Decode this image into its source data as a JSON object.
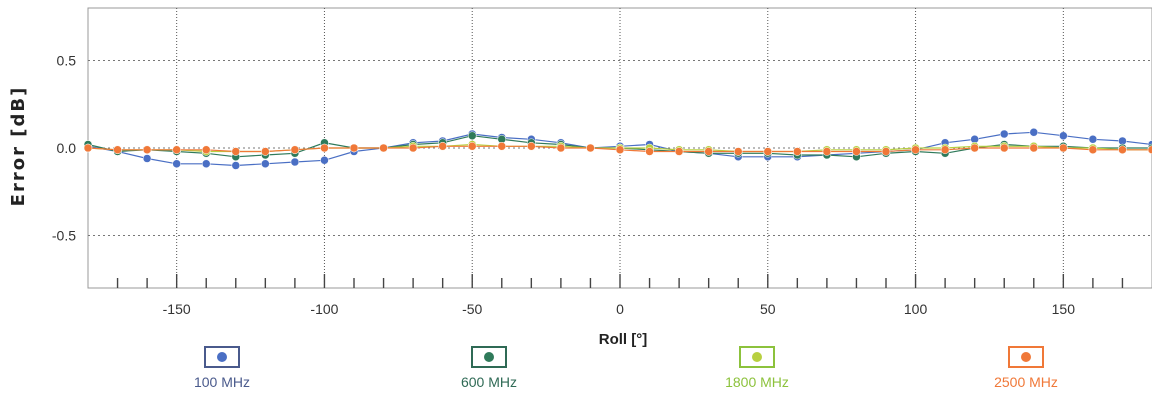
{
  "chart_data": {
    "type": "line",
    "xlabel": "Roll [°]",
    "ylabel": "Error [dB]",
    "xlim": [
      -180,
      180
    ],
    "ylim": [
      -0.8,
      0.8
    ],
    "x_ticks": [
      -150,
      -100,
      -50,
      0,
      50,
      100,
      150
    ],
    "x_tick_labels": [
      "-150",
      "-100",
      "-50",
      "0",
      "50",
      "100",
      "150"
    ],
    "y_ticks": [
      0.5,
      0.0,
      -0.5
    ],
    "y_tick_labels": [
      "0.5",
      "0.0",
      "-0.5"
    ],
    "grid": true,
    "legend_position": "bottom",
    "x": [
      -180,
      -170,
      -160,
      -150,
      -140,
      -130,
      -120,
      -110,
      -100,
      -90,
      -80,
      -70,
      -60,
      -50,
      -40,
      -30,
      -20,
      -10,
      0,
      10,
      20,
      30,
      40,
      50,
      60,
      70,
      80,
      90,
      100,
      110,
      120,
      130,
      140,
      150,
      160,
      170,
      180
    ],
    "series": [
      {
        "name": "100 MHz",
        "color": "#4a6fc4",
        "legend_color": "#4a5a8c",
        "values": [
          0.01,
          -0.02,
          -0.06,
          -0.09,
          -0.09,
          -0.1,
          -0.09,
          -0.08,
          -0.07,
          -0.02,
          0.0,
          0.03,
          0.04,
          0.08,
          0.06,
          0.05,
          0.03,
          0.0,
          0.01,
          0.02,
          -0.02,
          -0.03,
          -0.05,
          -0.05,
          -0.05,
          -0.04,
          -0.03,
          -0.02,
          -0.01,
          0.03,
          0.05,
          0.08,
          0.09,
          0.07,
          0.05,
          0.04,
          0.02
        ]
      },
      {
        "name": "600 MHz",
        "color": "#2f7a5a",
        "legend_color": "#2f6a55",
        "values": [
          0.02,
          -0.02,
          -0.01,
          -0.02,
          -0.03,
          -0.05,
          -0.04,
          -0.03,
          0.03,
          0.0,
          0.0,
          0.02,
          0.03,
          0.07,
          0.05,
          0.03,
          0.02,
          0.0,
          0.0,
          -0.01,
          -0.02,
          -0.03,
          -0.03,
          -0.03,
          -0.04,
          -0.04,
          -0.05,
          -0.03,
          -0.02,
          -0.03,
          0.0,
          0.02,
          0.01,
          0.01,
          0.0,
          0.0,
          0.0
        ]
      },
      {
        "name": "1800 MHz",
        "color": "#b8d040",
        "legend_color": "#8cc23c",
        "values": [
          0.0,
          -0.01,
          -0.01,
          -0.01,
          -0.02,
          -0.02,
          -0.02,
          -0.01,
          0.0,
          0.0,
          0.0,
          0.01,
          0.01,
          0.02,
          0.01,
          0.01,
          0.01,
          0.0,
          0.0,
          0.0,
          -0.01,
          -0.01,
          -0.02,
          -0.02,
          -0.02,
          -0.01,
          -0.01,
          -0.01,
          0.0,
          0.0,
          0.01,
          0.01,
          0.01,
          0.0,
          0.0,
          -0.01,
          -0.01
        ]
      },
      {
        "name": "2500 MHz",
        "color": "#f07838",
        "legend_color": "#f07838",
        "values": [
          0.0,
          -0.01,
          -0.01,
          -0.01,
          -0.01,
          -0.02,
          -0.02,
          -0.01,
          0.0,
          0.0,
          0.0,
          0.0,
          0.01,
          0.01,
          0.01,
          0.01,
          0.0,
          0.0,
          -0.01,
          -0.02,
          -0.02,
          -0.02,
          -0.02,
          -0.02,
          -0.02,
          -0.02,
          -0.02,
          -0.02,
          -0.01,
          -0.01,
          0.0,
          0.0,
          0.0,
          0.0,
          -0.01,
          -0.01,
          -0.01
        ]
      }
    ]
  }
}
